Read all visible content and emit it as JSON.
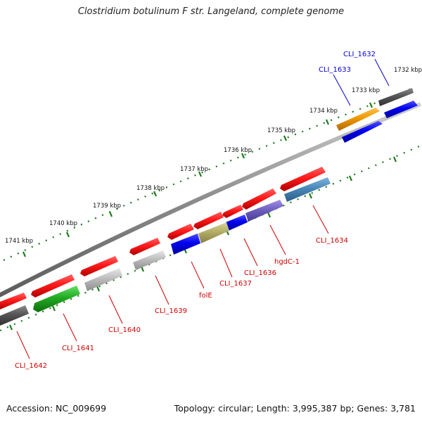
{
  "title": "Clostridium botulinum F str. Langeland, complete genome",
  "footer": {
    "accession": "Accession: NC_009699",
    "topology": "Topology: circular; Length: 3,995,387 bp; Genes: 3,781"
  },
  "kbp_labels": [
    "1732 kbp",
    "1733 kbp",
    "1734 kbp",
    "1735 kbp",
    "1736 kbp",
    "1737 kbp",
    "1738 kbp",
    "1739 kbp",
    "1740 kbp",
    "1741 kbp"
  ],
  "gene_labels": [
    {
      "id": "cli1632",
      "text": "CLI_1632",
      "color": "#0000cc"
    },
    {
      "id": "cli1633",
      "text": "CLI_1633",
      "color": "#0000cc"
    },
    {
      "id": "cli1634",
      "text": "CLI_1634",
      "color": "#cc0000"
    },
    {
      "id": "hgdc1",
      "text": "hgdC-1",
      "color": "#cc0000"
    },
    {
      "id": "cli1636",
      "text": "CLI_1636",
      "color": "#cc0000"
    },
    {
      "id": "cli1637",
      "text": "CLI_1637",
      "color": "#cc0000"
    },
    {
      "id": "fole",
      "text": "folE",
      "color": "#cc0000"
    },
    {
      "id": "cli1639",
      "text": "CLI_1639",
      "color": "#cc0000"
    },
    {
      "id": "cli1640",
      "text": "CLI_1640",
      "color": "#cc0000"
    },
    {
      "id": "cli1641",
      "text": "CLI_1641",
      "color": "#cc0000"
    },
    {
      "id": "cli1642",
      "text": "CLI_1642",
      "color": "#cc0000"
    }
  ],
  "colors": {
    "tick": "#1a7a1a",
    "backbone": "#8c8c8c",
    "gene_red": "#ee1111",
    "gene_blue": "#0000ee",
    "gene_orange": "#ee9900",
    "gene_darkgray": "#555555",
    "gene_lightgray": "#b8b8b8",
    "gene_olive": "#b3ad66",
    "gene_purple": "#7060c0",
    "gene_steelblue": "#4a88b8",
    "gene_green": "#22aa22"
  }
}
